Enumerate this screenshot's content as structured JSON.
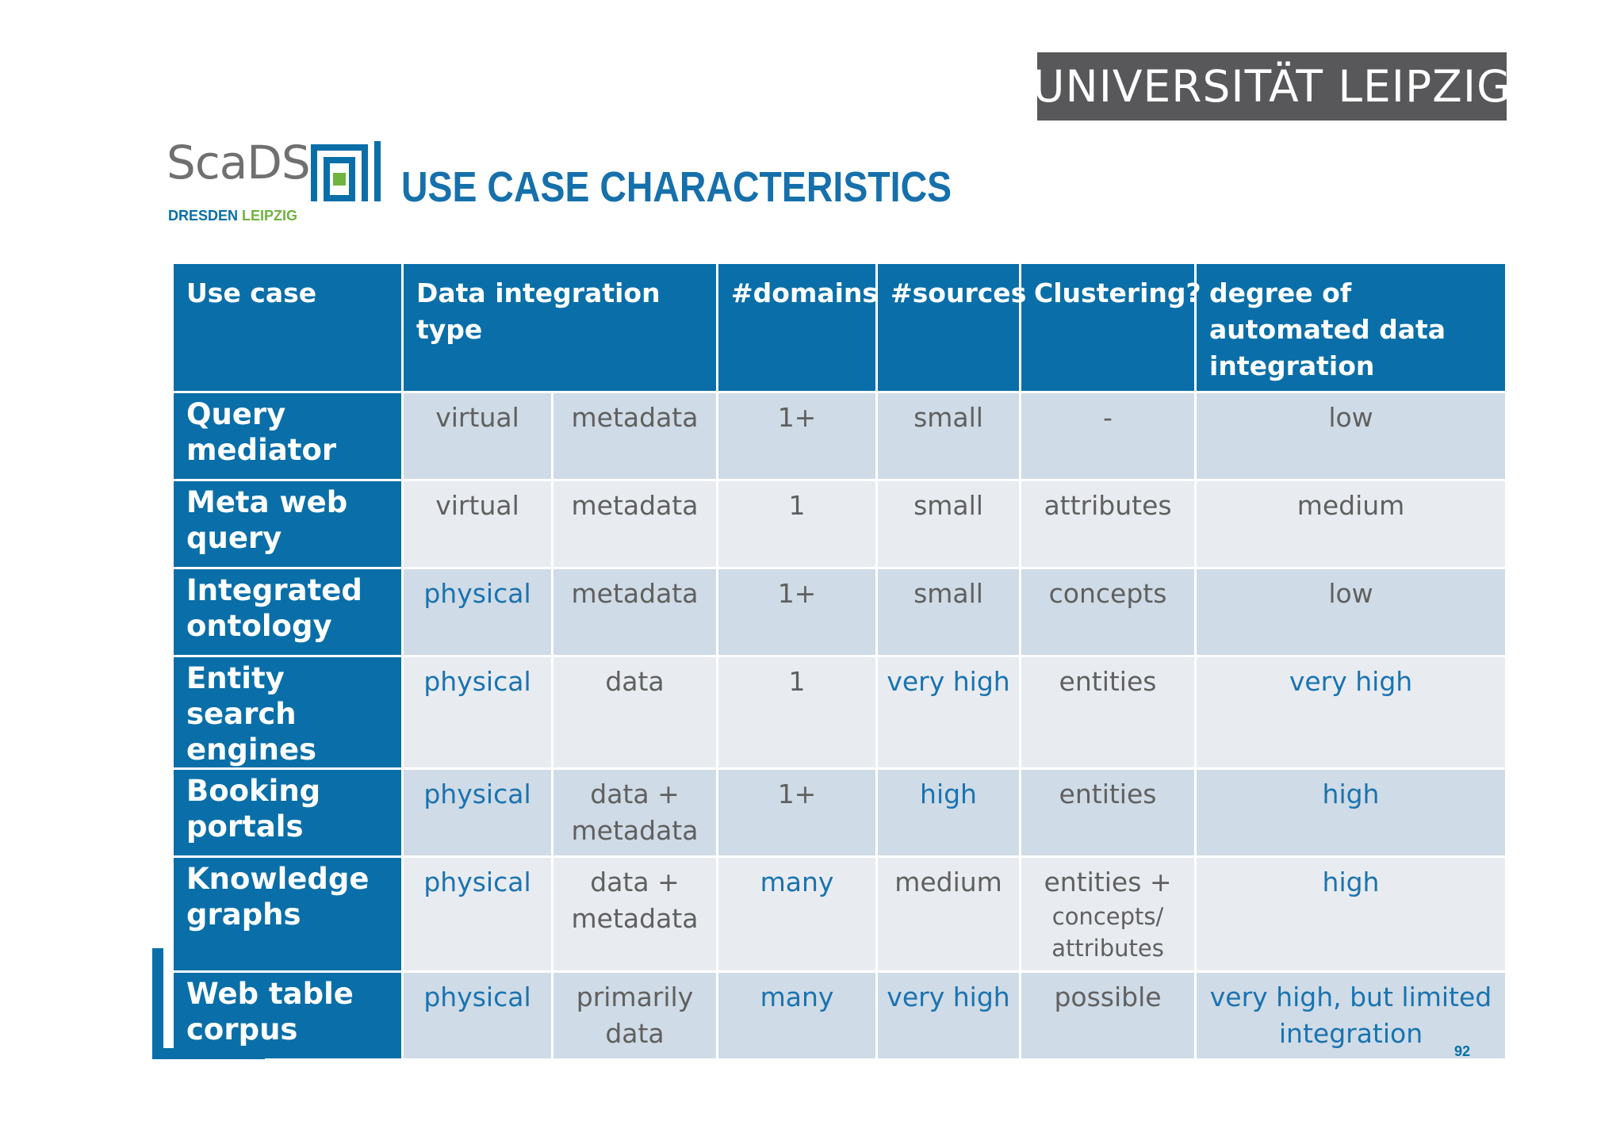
{
  "header": {
    "university": "UNIVERSITÄT LEIPZIG",
    "logo": {
      "name": "ScaDS",
      "sub_1": "DRESDEN",
      "sub_2": "LEIPZIG"
    },
    "title": "USE CASE CHARACTERISTICS"
  },
  "colors": {
    "brand_blue": "#0a6fa8",
    "highlight_text": "#1a73b0",
    "banner_gray": "#58585a"
  },
  "table": {
    "headers": [
      "Use case",
      "Data integration type",
      "#domains",
      "#sources",
      "Clustering?",
      "degree of automated data integration"
    ],
    "rows": [
      {
        "use_case": "Query mediator",
        "type": "virtual",
        "content": "metadata",
        "domains": "1+",
        "sources": "small",
        "clustering": "-",
        "degree": "low"
      },
      {
        "use_case": "Meta web query",
        "type": "virtual",
        "content": "metadata",
        "domains": "1",
        "sources": "small",
        "clustering": "attributes",
        "degree": "medium"
      },
      {
        "use_case": "Integrated ontology",
        "type": "physical",
        "content": "metadata",
        "domains": "1+",
        "sources": "small",
        "clustering": "concepts",
        "degree": "low"
      },
      {
        "use_case": "Entity search engines",
        "type": "physical",
        "content": "data",
        "domains": "1",
        "sources": "very high",
        "clustering": "entities",
        "degree": "very high"
      },
      {
        "use_case": "Booking portals",
        "type": "physical",
        "content": "data + metadata",
        "domains": "1+",
        "sources": "high",
        "clustering": "entities",
        "degree": "high"
      },
      {
        "use_case": "Knowledge graphs",
        "type": "physical",
        "content": "data + metadata",
        "domains": "many",
        "sources": "medium",
        "clustering_main": "entities +",
        "clustering_sub": "concepts/ attributes",
        "degree": "high"
      },
      {
        "use_case": "Web table corpus",
        "type": "physical",
        "content": "primarily data",
        "domains": "many",
        "sources": "very high",
        "clustering": "possible",
        "degree": "very high, but limited integration"
      }
    ]
  },
  "footer": {
    "page_number": "92"
  }
}
